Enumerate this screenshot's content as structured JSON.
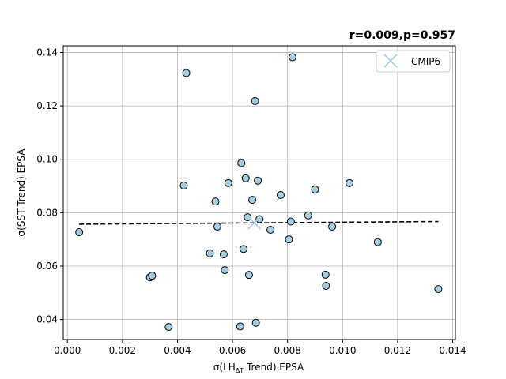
{
  "chart_data": {
    "type": "scatter",
    "title": "r=0.009,p=0.957",
    "xlabel_prefix": "σ(LH",
    "xlabel_sub": "ΔT",
    "xlabel_suffix": " Trend) EPSA",
    "ylabel": "σ(SST Trend) EPSA",
    "xlim": [
      -0.00015,
      0.0141
    ],
    "ylim": [
      0.0325,
      0.1425
    ],
    "xticks": [
      0.0,
      0.002,
      0.004,
      0.006,
      0.008,
      0.01,
      0.012,
      0.014
    ],
    "xtick_labels": [
      "0.000",
      "0.002",
      "0.004",
      "0.006",
      "0.008",
      "0.010",
      "0.012",
      "0.014"
    ],
    "yticks": [
      0.04,
      0.06,
      0.08,
      0.1,
      0.12,
      0.14
    ],
    "ytick_labels": [
      "0.04",
      "0.06",
      "0.08",
      "0.10",
      "0.12",
      "0.14"
    ],
    "grid": true,
    "legend_position": "upper right",
    "points_color": "#a6cee3",
    "points_edge_color": "#000000",
    "points": [
      {
        "x": 0.00043,
        "y": 0.0727
      },
      {
        "x": 0.003,
        "y": 0.0558
      },
      {
        "x": 0.00308,
        "y": 0.0564
      },
      {
        "x": 0.00368,
        "y": 0.0372
      },
      {
        "x": 0.00423,
        "y": 0.0902
      },
      {
        "x": 0.00432,
        "y": 0.1323
      },
      {
        "x": 0.00518,
        "y": 0.0648
      },
      {
        "x": 0.00538,
        "y": 0.0842
      },
      {
        "x": 0.00545,
        "y": 0.0748
      },
      {
        "x": 0.00568,
        "y": 0.0644
      },
      {
        "x": 0.00572,
        "y": 0.0585
      },
      {
        "x": 0.00585,
        "y": 0.0911
      },
      {
        "x": 0.00628,
        "y": 0.0374
      },
      {
        "x": 0.00632,
        "y": 0.0986
      },
      {
        "x": 0.0064,
        "y": 0.0664
      },
      {
        "x": 0.00648,
        "y": 0.0929
      },
      {
        "x": 0.00655,
        "y": 0.0783
      },
      {
        "x": 0.0066,
        "y": 0.0567
      },
      {
        "x": 0.00672,
        "y": 0.0848
      },
      {
        "x": 0.00682,
        "y": 0.1218
      },
      {
        "x": 0.00685,
        "y": 0.0388
      },
      {
        "x": 0.00692,
        "y": 0.092
      },
      {
        "x": 0.00698,
        "y": 0.0776
      },
      {
        "x": 0.00738,
        "y": 0.0736
      },
      {
        "x": 0.00775,
        "y": 0.0866
      },
      {
        "x": 0.00805,
        "y": 0.07
      },
      {
        "x": 0.00812,
        "y": 0.0767
      },
      {
        "x": 0.00818,
        "y": 0.1382
      },
      {
        "x": 0.00875,
        "y": 0.079
      },
      {
        "x": 0.009,
        "y": 0.0887
      },
      {
        "x": 0.00938,
        "y": 0.0568
      },
      {
        "x": 0.0094,
        "y": 0.0526
      },
      {
        "x": 0.00962,
        "y": 0.0748
      },
      {
        "x": 0.01025,
        "y": 0.0911
      },
      {
        "x": 0.01128,
        "y": 0.069
      },
      {
        "x": 0.01348,
        "y": 0.0514
      }
    ],
    "series": [
      {
        "name": "CMIP6",
        "marker": "x",
        "color": "#a6cee3",
        "x": 0.0068,
        "y": 0.0762
      }
    ],
    "fit_line": {
      "x": [
        0.00043,
        0.01348
      ],
      "y": [
        0.0757,
        0.0767
      ],
      "style": "dashed",
      "color": "#000000"
    }
  }
}
